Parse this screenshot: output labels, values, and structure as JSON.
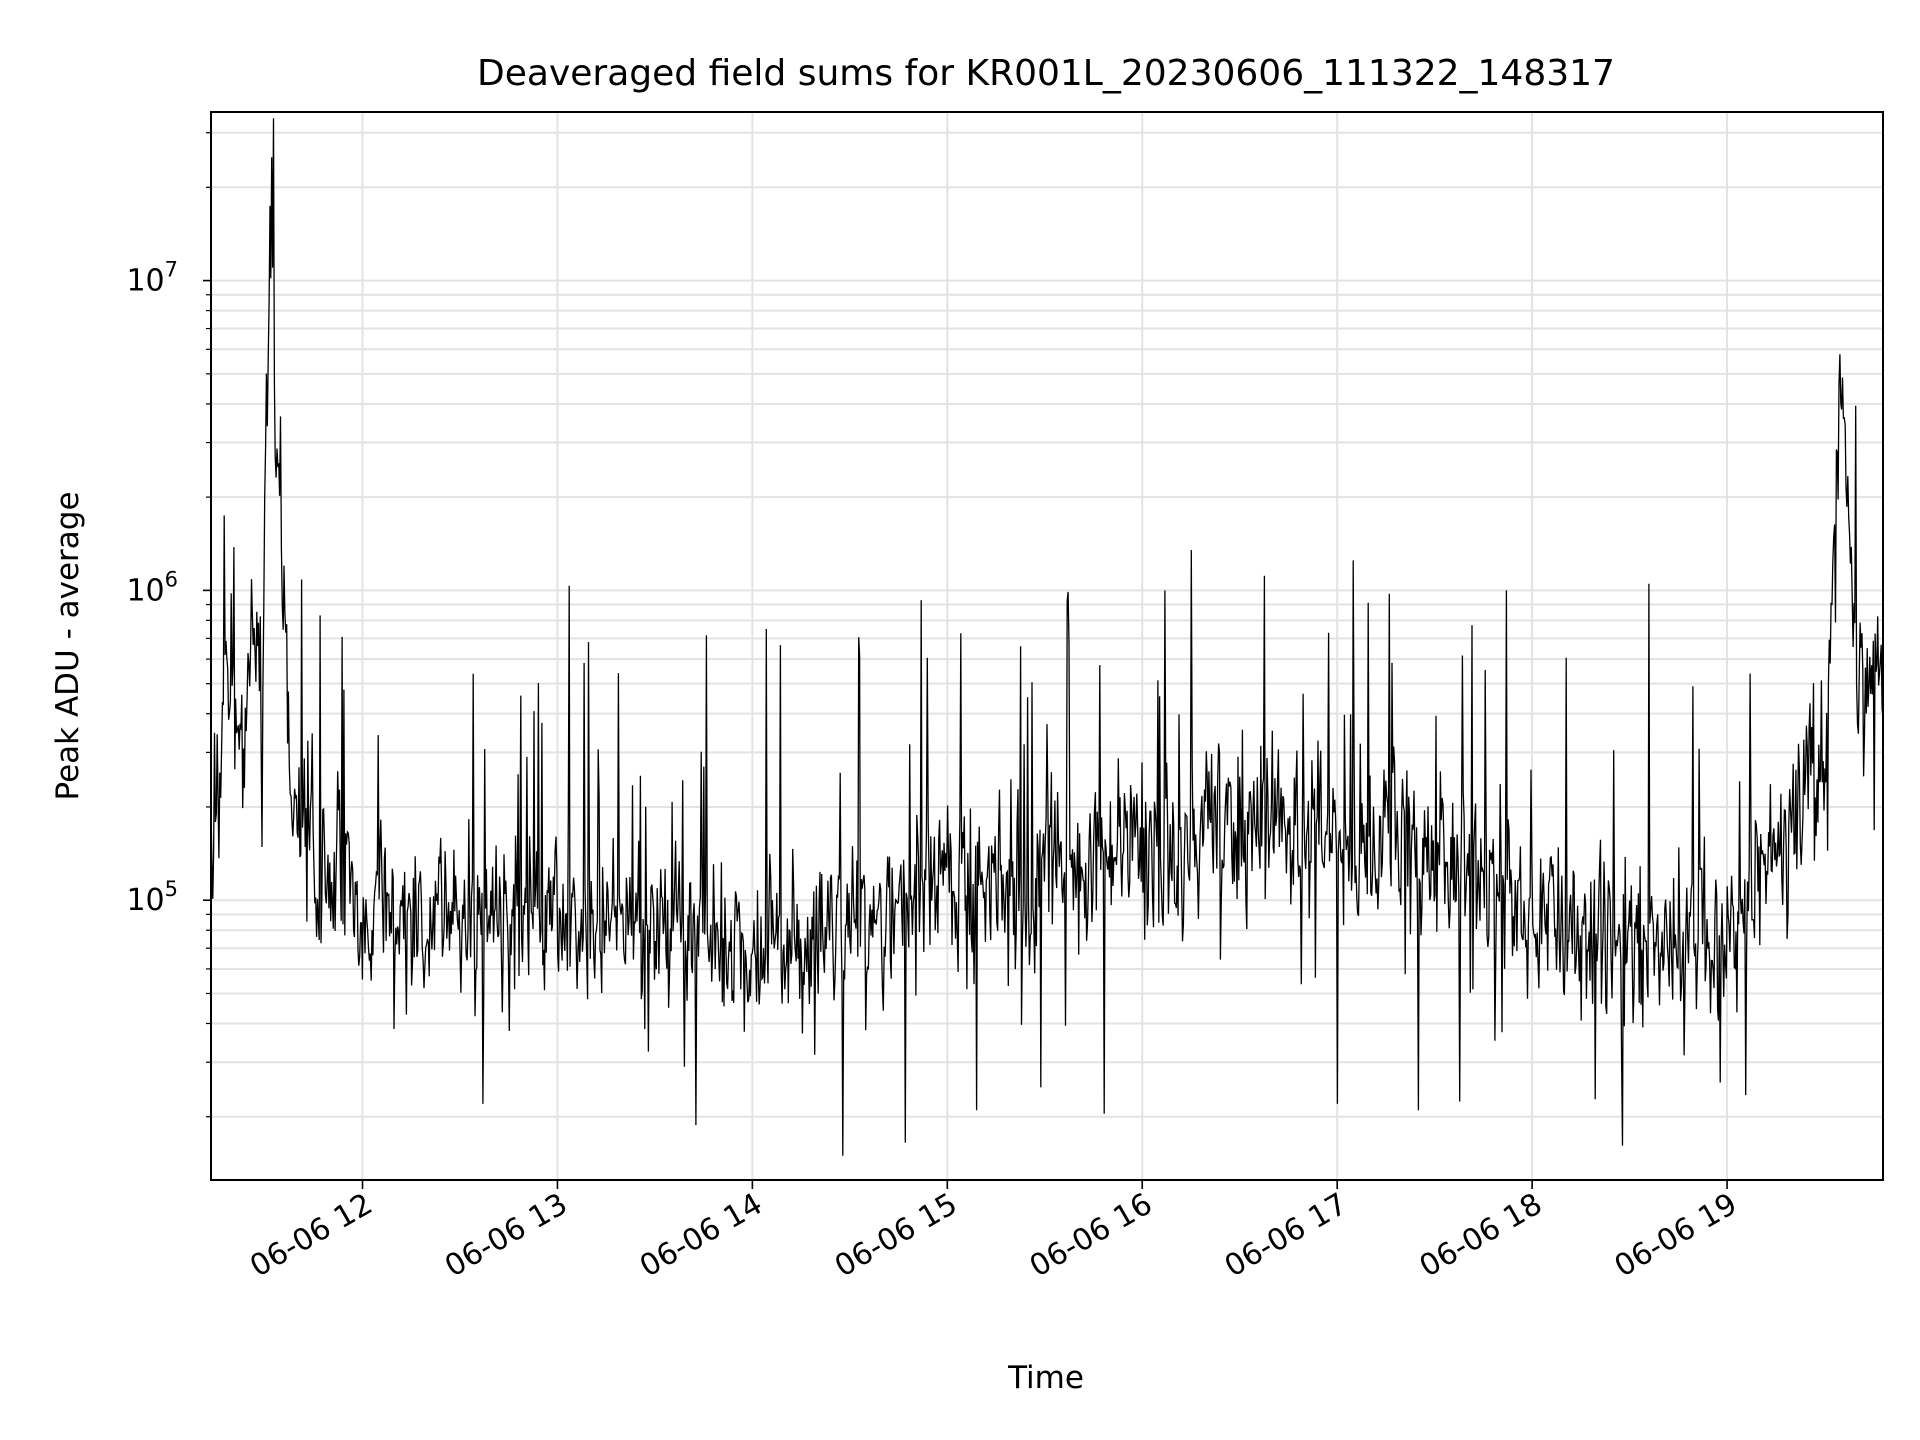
{
  "chart_data": {
    "type": "line",
    "title": "Deaveraged field sums for KR001L_20230606_111322_148317",
    "xlabel": "Time",
    "ylabel": "Peak ADU - average",
    "yscale": "log",
    "ylim": [
      12500,
      35000000
    ],
    "xlim": [
      "2023-06-06 11:13:22",
      "2023-06-06 19:48:00"
    ],
    "grid": true,
    "line_color": "#000000",
    "grid_color": "#e3e3e3",
    "x_tick_labels": [
      "06-06 12",
      "06-06 13",
      "06-06 14",
      "06-06 15",
      "06-06 16",
      "06-06 17",
      "06-06 18",
      "06-06 19"
    ],
    "y_tick_labels": [
      {
        "base": "10",
        "exp": "5",
        "value": 100000
      },
      {
        "base": "10",
        "exp": "6",
        "value": 1000000
      },
      {
        "base": "10",
        "exp": "7",
        "value": 10000000
      }
    ],
    "series": [
      {
        "values": [
          {
            "x": "2023-06-06 11:13:22",
            "y": 170000
          },
          {
            "x": "2023-06-06 11:18:00",
            "y": 450000
          },
          {
            "x": "2023-06-06 11:22:00",
            "y": 320000
          },
          {
            "x": "2023-06-06 11:26:00",
            "y": 700000
          },
          {
            "x": "2023-06-06 11:29:00",
            "y": 400000
          },
          {
            "x": "2023-06-06 11:32:00",
            "y": 25000000
          },
          {
            "x": "2023-06-06 11:34:00",
            "y": 2500000
          },
          {
            "x": "2023-06-06 11:38:00",
            "y": 200000
          },
          {
            "x": "2023-06-06 11:45:00",
            "y": 130000
          },
          {
            "x": "2023-06-06 11:55:00",
            "y": 110000
          },
          {
            "x": "2023-06-06 12:05:00",
            "y": 90000
          },
          {
            "x": "2023-06-06 12:15:00",
            "y": 85000
          },
          {
            "x": "2023-06-06 12:30:00",
            "y": 90000
          },
          {
            "x": "2023-06-06 12:50:00",
            "y": 85000
          },
          {
            "x": "2023-06-06 13:00:00",
            "y": 95000
          },
          {
            "x": "2023-06-06 13:20:00",
            "y": 90000
          },
          {
            "x": "2023-06-06 13:40:00",
            "y": 80000
          },
          {
            "x": "2023-06-06 14:00:00",
            "y": 75000
          },
          {
            "x": "2023-06-06 14:20:00",
            "y": 75000
          },
          {
            "x": "2023-06-06 14:35:00",
            "y": 80000
          },
          {
            "x": "2023-06-06 14:45:00",
            "y": 100000
          },
          {
            "x": "2023-06-06 15:00:00",
            "y": 110000
          },
          {
            "x": "2023-06-06 15:20:00",
            "y": 120000
          },
          {
            "x": "2023-06-06 15:40:00",
            "y": 125000
          },
          {
            "x": "2023-06-06 16:00:00",
            "y": 150000
          },
          {
            "x": "2023-06-06 16:20:00",
            "y": 170000
          },
          {
            "x": "2023-06-06 16:40:00",
            "y": 170000
          },
          {
            "x": "2023-06-06 17:00:00",
            "y": 160000
          },
          {
            "x": "2023-06-06 17:20:00",
            "y": 150000
          },
          {
            "x": "2023-06-06 17:40:00",
            "y": 130000
          },
          {
            "x": "2023-06-06 18:00:00",
            "y": 95000
          },
          {
            "x": "2023-06-06 18:20:00",
            "y": 75000
          },
          {
            "x": "2023-06-06 18:40:00",
            "y": 70000
          },
          {
            "x": "2023-06-06 19:00:00",
            "y": 75000
          },
          {
            "x": "2023-06-06 19:10:00",
            "y": 130000
          },
          {
            "x": "2023-06-06 19:20:00",
            "y": 200000
          },
          {
            "x": "2023-06-06 19:30:00",
            "y": 300000
          },
          {
            "x": "2023-06-06 19:35:00",
            "y": 4000000
          },
          {
            "x": "2023-06-06 19:40:00",
            "y": 500000
          },
          {
            "x": "2023-06-06 19:48:00",
            "y": 550000
          }
        ],
        "notable_peaks": [
          {
            "x": "2023-06-06 11:32:00",
            "y": 25000000
          },
          {
            "x": "2023-06-06 11:34:00",
            "y": 2500000
          },
          {
            "x": "2023-06-06 14:52:00",
            "y": 930000
          },
          {
            "x": "2023-06-06 15:37:00",
            "y": 930000
          },
          {
            "x": "2023-06-06 16:07:00",
            "y": 1000000
          },
          {
            "x": "2023-06-06 16:15:00",
            "y": 1350000
          },
          {
            "x": "2023-06-06 17:05:00",
            "y": 1250000
          },
          {
            "x": "2023-06-06 17:52:00",
            "y": 1000000
          },
          {
            "x": "2023-06-06 18:36:00",
            "y": 1050000
          },
          {
            "x": "2023-06-06 19:35:00",
            "y": 4000000
          }
        ],
        "notable_dips": [
          {
            "x": "2023-06-06 12:37:00",
            "y": 22000
          },
          {
            "x": "2023-06-06 14:47:00",
            "y": 16500
          },
          {
            "x": "2023-06-06 15:09:00",
            "y": 21000
          },
          {
            "x": "2023-06-06 17:00:00",
            "y": 22000
          },
          {
            "x": "2023-06-06 17:25:00",
            "y": 21000
          }
        ]
      }
    ]
  }
}
